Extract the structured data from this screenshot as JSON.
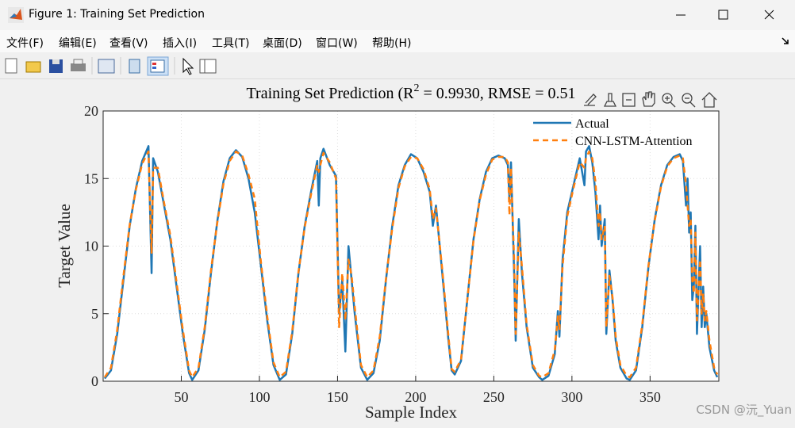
{
  "window": {
    "title": "Figure 1: Training Set Prediction",
    "menu": [
      "文件(F)",
      "编辑(E)",
      "查看(V)",
      "插入(I)",
      "工具(T)",
      "桌面(D)",
      "窗口(W)",
      "帮助(H)"
    ],
    "watermark": "CSDN @沅_Yuan"
  },
  "chart_data": {
    "type": "line",
    "title": [
      "Training Set Prediction (R",
      "2",
      " = 0.9930, RMSE = 0.51"
    ],
    "x_label": "Sample Index",
    "y_label": "Target Value",
    "x": [
      1,
      5,
      9,
      13,
      17,
      21,
      25,
      29,
      31,
      32,
      35,
      39,
      43,
      47,
      51,
      55,
      57,
      61,
      65,
      69,
      73,
      77,
      81,
      85,
      89,
      93,
      97,
      101,
      105,
      109,
      113,
      117,
      121,
      125,
      129,
      133,
      137,
      138,
      139,
      141,
      145,
      149,
      151,
      153,
      155,
      157,
      159,
      161,
      165,
      169,
      173,
      177,
      181,
      185,
      189,
      193,
      197,
      201,
      205,
      209,
      211,
      213,
      217,
      221,
      223,
      225,
      229,
      233,
      237,
      241,
      245,
      249,
      253,
      257,
      259,
      260,
      261,
      263,
      264,
      266,
      268,
      271,
      275,
      279,
      281,
      285,
      289,
      291,
      292,
      294,
      297,
      301,
      305,
      308,
      309,
      311,
      313,
      315,
      317,
      318,
      319,
      321,
      322,
      324,
      326,
      328,
      331,
      335,
      337,
      341,
      345,
      349,
      353,
      357,
      361,
      365,
      369,
      371,
      373,
      374,
      375,
      376,
      377,
      378,
      379,
      380,
      382,
      383,
      384,
      385,
      386,
      388,
      391,
      393
    ],
    "series": [
      {
        "name": "Actual",
        "color": "#1f77b4",
        "dashed": false,
        "values": [
          0.2,
          0.8,
          3.5,
          7.5,
          11.5,
          14.3,
          16.3,
          17.4,
          8.0,
          16.5,
          15.5,
          13.0,
          10.5,
          7.0,
          3.5,
          0.6,
          0.1,
          0.8,
          3.8,
          8.0,
          11.8,
          14.8,
          16.5,
          17.1,
          16.6,
          15.0,
          12.5,
          8.5,
          4.5,
          1.2,
          0.1,
          0.5,
          3.5,
          8.0,
          11.5,
          14.0,
          16.3,
          13.0,
          16.5,
          17.2,
          16.0,
          15.2,
          5.0,
          7.5,
          2.2,
          10.0,
          7.5,
          5.0,
          1.0,
          0.1,
          0.6,
          3.0,
          7.5,
          11.5,
          14.5,
          16.0,
          16.8,
          16.5,
          15.5,
          14.0,
          11.5,
          13.0,
          8.0,
          3.0,
          0.8,
          0.5,
          1.5,
          6.0,
          10.5,
          13.5,
          15.5,
          16.5,
          16.7,
          16.5,
          16.0,
          13.5,
          16.2,
          8.0,
          3.0,
          12.0,
          8.0,
          4.0,
          1.0,
          0.3,
          0.1,
          0.4,
          2.0,
          5.2,
          3.3,
          9.0,
          12.5,
          14.5,
          16.5,
          14.5,
          17.0,
          17.4,
          16.2,
          14.0,
          10.5,
          13.0,
          10.0,
          12.0,
          3.5,
          8.2,
          6.0,
          3.0,
          1.0,
          0.2,
          0.1,
          0.8,
          4.0,
          8.5,
          12.0,
          14.5,
          16.0,
          16.6,
          16.8,
          16.3,
          13.0,
          15.0,
          11.0,
          12.5,
          6.0,
          7.0,
          11.5,
          3.5,
          10.0,
          4.0,
          7.0,
          4.0,
          5.0,
          2.5,
          0.8,
          0.3
        ]
      },
      {
        "name": "CNN-LSTM-Attention",
        "color": "#ff7f0e",
        "dashed": true,
        "values": [
          0.3,
          1.0,
          3.8,
          7.8,
          11.6,
          14.2,
          16.1,
          17.0,
          9.5,
          15.8,
          15.8,
          13.2,
          10.8,
          7.3,
          3.8,
          0.8,
          0.3,
          1.0,
          4.0,
          8.2,
          11.7,
          14.6,
          16.3,
          17.0,
          16.7,
          15.3,
          13.5,
          8.8,
          4.8,
          1.4,
          0.3,
          0.7,
          3.7,
          8.1,
          11.4,
          13.8,
          16.0,
          15.5,
          16.0,
          16.9,
          16.2,
          15.0,
          4.0,
          8.0,
          4.5,
          9.0,
          7.8,
          5.5,
          1.2,
          0.3,
          0.8,
          3.3,
          7.6,
          11.3,
          14.3,
          15.9,
          16.6,
          16.5,
          15.7,
          14.2,
          12.0,
          12.8,
          8.3,
          3.3,
          0.9,
          0.7,
          1.6,
          6.0,
          10.4,
          13.4,
          15.3,
          16.4,
          16.6,
          16.6,
          16.2,
          12.3,
          15.8,
          9.0,
          3.5,
          11.0,
          8.5,
          4.2,
          1.2,
          0.4,
          0.3,
          0.6,
          2.3,
          4.8,
          3.8,
          8.5,
          12.2,
          14.3,
          16.2,
          15.8,
          16.5,
          17.0,
          16.5,
          14.8,
          11.5,
          12.5,
          10.5,
          11.5,
          4.0,
          7.8,
          6.2,
          3.3,
          1.2,
          0.4,
          0.3,
          1.0,
          4.2,
          8.6,
          11.9,
          14.4,
          15.9,
          16.5,
          16.7,
          16.5,
          14.5,
          13.0,
          11.5,
          12.0,
          7.5,
          6.5,
          11.0,
          4.5,
          9.0,
          5.0,
          6.5,
          4.5,
          5.2,
          3.0,
          1.0,
          0.5
        ]
      }
    ],
    "xlim": [
      0,
      394
    ],
    "ylim": [
      0,
      20
    ],
    "xticks": [
      50,
      100,
      150,
      200,
      250,
      300,
      350
    ],
    "yticks": [
      0,
      5,
      10,
      15,
      20
    ],
    "grid": true,
    "legend": "top-right"
  }
}
